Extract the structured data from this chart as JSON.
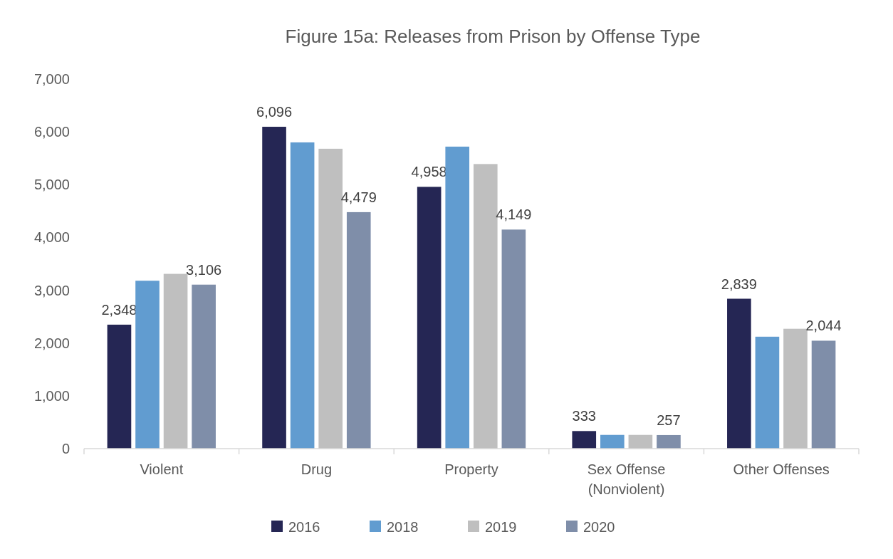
{
  "chart_data": {
    "type": "bar",
    "title": "Figure 15a: Releases from Prison by Offense Type",
    "categories": [
      "Violent",
      "Drug",
      "Property",
      "Sex Offense\n(Nonviolent)",
      "Other Offenses"
    ],
    "series": [
      {
        "name": "2016",
        "color": "#252654",
        "values": [
          2348,
          6096,
          4958,
          333,
          2839
        ],
        "value_labels": [
          "2,348",
          "6,096",
          "4,958",
          "333",
          "2,839"
        ]
      },
      {
        "name": "2018",
        "color": "#619cd0",
        "values": [
          3180,
          5800,
          5720,
          260,
          2120
        ]
      },
      {
        "name": "2019",
        "color": "#bfbfbf",
        "values": [
          3310,
          5680,
          5390,
          260,
          2270
        ]
      },
      {
        "name": "2020",
        "color": "#7f8ea9",
        "values": [
          3106,
          4479,
          4149,
          257,
          2044
        ],
        "value_labels": [
          "3,106",
          "4,479",
          "4,149",
          "257",
          "2,044"
        ]
      }
    ],
    "ylim": [
      0,
      7000
    ],
    "yticks": [
      {
        "value": 0,
        "label": "0"
      },
      {
        "value": 1000,
        "label": "1,000"
      },
      {
        "value": 2000,
        "label": "2,000"
      },
      {
        "value": 3000,
        "label": "3,000"
      },
      {
        "value": 4000,
        "label": "4,000"
      },
      {
        "value": 5000,
        "label": "5,000"
      },
      {
        "value": 6000,
        "label": "6,000"
      },
      {
        "value": 7000,
        "label": "7,000"
      }
    ],
    "grid": false,
    "legend": "bottom"
  }
}
